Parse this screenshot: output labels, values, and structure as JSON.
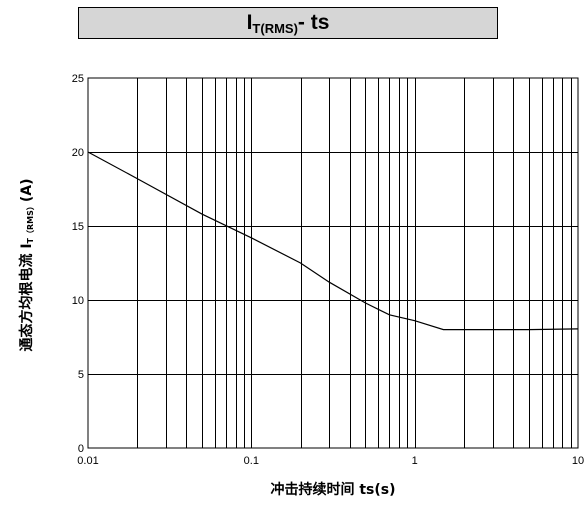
{
  "title": {
    "main": "I",
    "sub": "T(RMS)",
    "tail": "- ts"
  },
  "ylabel": {
    "pre": "通态方均根电流 I",
    "sub": "T（RMS）",
    "post": "(A)"
  },
  "xlabel": "冲击持续时间 ts(s)",
  "chart_data": {
    "type": "line",
    "x_scale": "log",
    "y_scale": "linear",
    "xlim": [
      0.01,
      10
    ],
    "ylim": [
      0,
      25
    ],
    "x_ticks": [
      0.01,
      0.1,
      1,
      10
    ],
    "x_tick_labels": [
      "0.01",
      "0.1",
      "1",
      "10"
    ],
    "y_ticks": [
      0,
      5,
      10,
      15,
      20,
      25
    ],
    "y_tick_labels": [
      "0",
      "5",
      "10",
      "15",
      "20",
      "25"
    ],
    "grid": true,
    "series": [
      {
        "x": [
          0.01,
          0.02,
          0.05,
          0.1,
          0.2,
          0.3,
          0.5,
          0.7,
          1.0,
          1.5,
          2.0,
          5.0,
          10.0
        ],
        "y": [
          20,
          18.2,
          15.8,
          14.2,
          12.5,
          11.2,
          9.8,
          9.0,
          8.6,
          8.0,
          8.0,
          8.0,
          8.05
        ]
      }
    ],
    "colors": {
      "line": "#000000",
      "grid": "#000000",
      "background": "#ffffff"
    }
  }
}
